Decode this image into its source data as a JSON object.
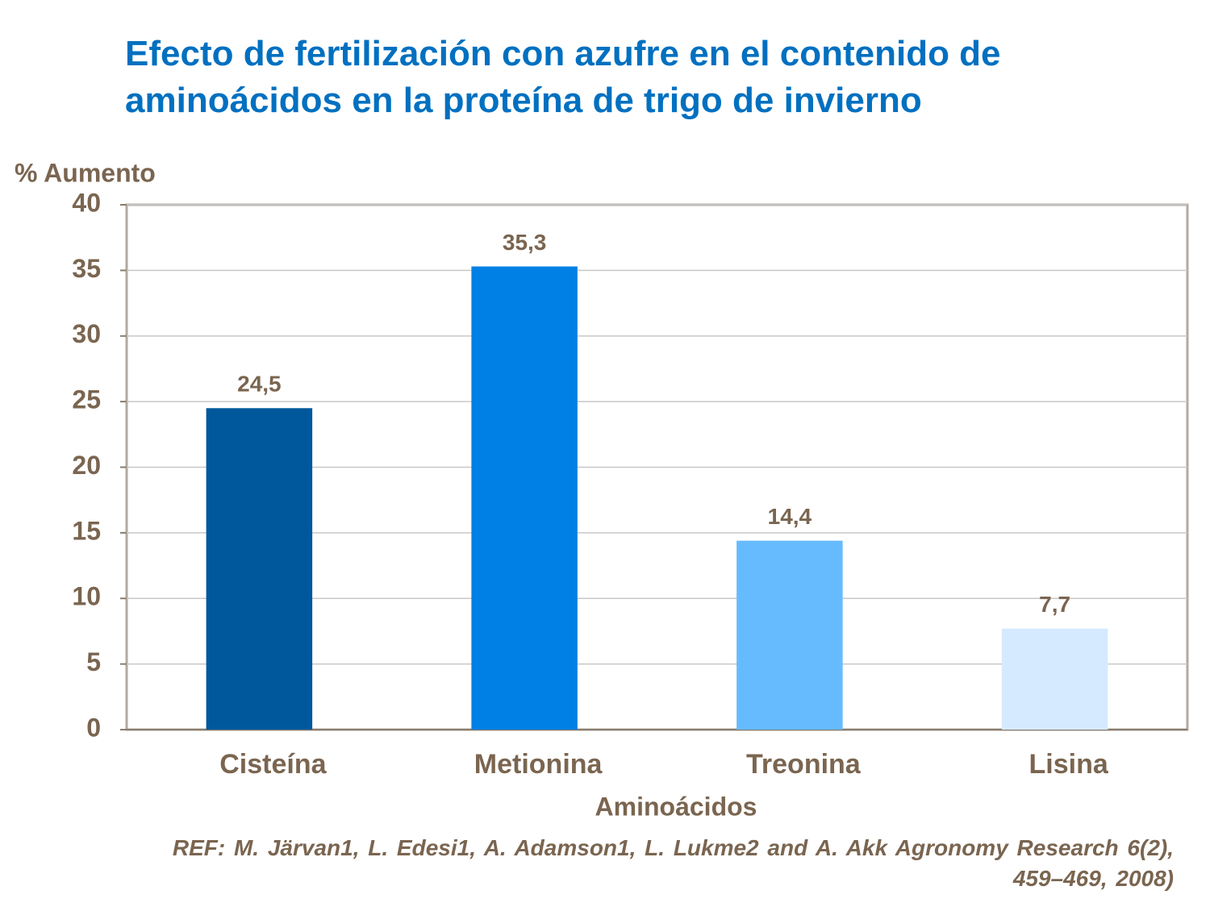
{
  "chart_data": {
    "type": "bar",
    "title": "Efecto de fertilización con azufre en el contenido de aminoácidos en la proteína de trigo de invierno",
    "y_label": "% Aumento",
    "x_label": "Aminoácidos",
    "categories": [
      "Cisteína",
      "Metionina",
      "Treonina",
      "Lisina"
    ],
    "values": [
      24.5,
      35.3,
      14.4,
      7.7
    ],
    "value_labels": [
      "24,5",
      "35,3",
      "14,4",
      "7,7"
    ],
    "colors": [
      "#00589c",
      "#0080e4",
      "#66bbff",
      "#d5eaff"
    ],
    "ylim": [
      0,
      40
    ],
    "yticks": [
      0,
      5,
      10,
      15,
      20,
      25,
      30,
      35,
      40
    ],
    "grid": true,
    "reference": "REF: M. Järvan1, L. Edesi1, A. Adamson1, L. Lukme2 and A. Akk Agronomy Research 6(2), 459–469, 2008)"
  }
}
